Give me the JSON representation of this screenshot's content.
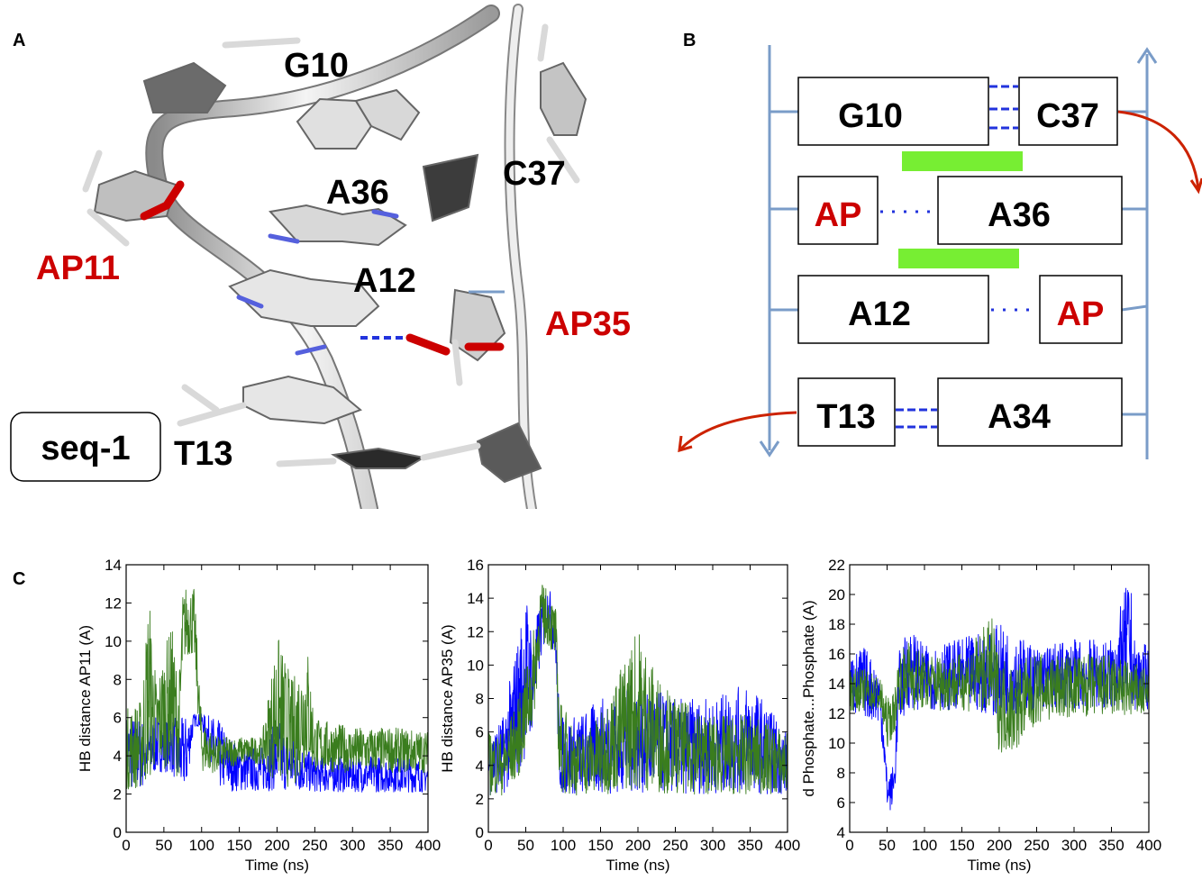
{
  "panel_labels": {
    "a": "A",
    "b": "B",
    "c": "C"
  },
  "panel_a": {
    "labels": {
      "g10": "G10",
      "c37": "C37",
      "a36": "A36",
      "a12": "A12",
      "ap11": "AP11",
      "ap35": "AP35",
      "t13": "T13",
      "seq": "seq-1"
    }
  },
  "panel_b": {
    "rows": [
      {
        "left": "G10",
        "right": "C37"
      },
      {
        "left": "AP",
        "right": "A36"
      },
      {
        "left": "A12",
        "right": "AP"
      },
      {
        "left": "T13",
        "right": "A34"
      }
    ]
  },
  "colors": {
    "blue": "#0000ff",
    "green": "#3a7d1e",
    "highlight_red": "#cc0000",
    "strand_blue": "#7a9cc8",
    "bar_green": "#77ee33",
    "arrow_red": "#cc2200",
    "hb_dash": "#2233dd"
  },
  "chart_data": [
    {
      "type": "line",
      "ylabel": "HB distance AP11 (A)",
      "xlabel": "Time (ns)",
      "xlim": [
        0,
        400
      ],
      "ylim": [
        0,
        14
      ],
      "xticks": [
        "0",
        "50",
        "100",
        "150",
        "200",
        "250",
        "300",
        "350",
        "400"
      ],
      "yticks": [
        "0",
        "2",
        "4",
        "6",
        "8",
        "10",
        "12",
        "14"
      ],
      "series": [
        {
          "color": "#0000ff",
          "x": [
            0,
            20,
            40,
            60,
            70,
            75,
            80,
            90,
            100,
            120,
            150,
            180,
            200,
            220,
            250,
            300,
            350,
            400
          ],
          "low": [
            2,
            2,
            3,
            3,
            2,
            2,
            2,
            5.5,
            5.5,
            2,
            2,
            2,
            2,
            2,
            2,
            2,
            2,
            2
          ],
          "high": [
            6.2,
            6,
            6,
            6,
            6,
            6,
            6.2,
            6.2,
            6.2,
            6,
            4.5,
            4.5,
            6,
            5,
            4,
            4,
            4,
            3.8
          ]
        },
        {
          "color": "#3a7d1e",
          "x": [
            0,
            20,
            30,
            40,
            60,
            70,
            75,
            80,
            90,
            100,
            120,
            150,
            180,
            200,
            220,
            240,
            250,
            300,
            350,
            400
          ],
          "low": [
            2,
            2,
            2,
            3,
            3,
            2.5,
            8.5,
            9,
            9,
            3,
            3,
            3.5,
            3.5,
            2,
            2,
            3,
            3,
            3,
            3,
            3
          ],
          "high": [
            6.5,
            7,
            12.8,
            8,
            11,
            8,
            12.5,
            13,
            12.8,
            6,
            5,
            5,
            5,
            10.5,
            8,
            10,
            6,
            5.5,
            5.5,
            5.3
          ]
        }
      ]
    },
    {
      "type": "line",
      "ylabel": "HB distance AP35 (A)",
      "xlabel": "Time (ns)",
      "xlim": [
        0,
        400
      ],
      "ylim": [
        0,
        16
      ],
      "xticks": [
        "0",
        "50",
        "100",
        "150",
        "200",
        "250",
        "300",
        "350",
        "400"
      ],
      "yticks": [
        "0",
        "2",
        "4",
        "6",
        "8",
        "10",
        "12",
        "14",
        "16"
      ],
      "series": [
        {
          "color": "#0000ff",
          "x": [
            0,
            20,
            40,
            50,
            60,
            70,
            80,
            90,
            95,
            120,
            150,
            200,
            250,
            300,
            350,
            400
          ],
          "low": [
            2,
            2,
            3,
            4,
            6,
            10,
            12,
            10,
            2,
            2,
            2,
            2,
            2,
            2,
            2,
            2
          ],
          "high": [
            6,
            7,
            12,
            14.5,
            12,
            14,
            15,
            13,
            7,
            7,
            8,
            9,
            8,
            8,
            9,
            6
          ]
        },
        {
          "color": "#3a7d1e",
          "x": [
            0,
            20,
            40,
            60,
            70,
            80,
            90,
            95,
            120,
            150,
            200,
            220,
            250,
            300,
            350,
            400
          ],
          "low": [
            2,
            2,
            3,
            6,
            11,
            11,
            10,
            2,
            2,
            2,
            2,
            2,
            2,
            2,
            2,
            2
          ],
          "high": [
            6,
            6,
            8,
            12,
            15,
            14.5,
            13.5,
            8,
            6,
            7,
            12.5,
            10,
            8,
            7,
            7,
            6
          ]
        }
      ]
    },
    {
      "type": "line",
      "ylabel": "d Phosphate...Phosphate (A)",
      "xlabel": "Time (ns)",
      "xlim": [
        0,
        400
      ],
      "ylim": [
        4,
        22
      ],
      "xticks": [
        "0",
        "50",
        "100",
        "150",
        "200",
        "250",
        "300",
        "350",
        "400"
      ],
      "yticks": [
        "4",
        "6",
        "8",
        "10",
        "12",
        "14",
        "16",
        "18",
        "20",
        "22"
      ],
      "series": [
        {
          "color": "#0000ff",
          "x": [
            0,
            20,
            40,
            45,
            50,
            55,
            60,
            65,
            80,
            100,
            150,
            200,
            250,
            300,
            350,
            375,
            380,
            400
          ],
          "low": [
            11.5,
            11.5,
            11,
            9,
            5.5,
            5.3,
            6,
            11,
            12,
            12,
            12,
            11.5,
            12,
            12,
            12,
            12,
            12,
            12
          ],
          "high": [
            16,
            16.5,
            15,
            12,
            8,
            8,
            9,
            16,
            18,
            16.5,
            17,
            18,
            16.5,
            17,
            17,
            21.5,
            17,
            16.5
          ]
        },
        {
          "color": "#3a7d1e",
          "x": [
            0,
            20,
            40,
            50,
            60,
            65,
            80,
            100,
            150,
            190,
            200,
            220,
            250,
            300,
            350,
            400
          ],
          "low": [
            12,
            12,
            12,
            9.5,
            10.5,
            12,
            12,
            12,
            12,
            11.5,
            9,
            9,
            11,
            11.5,
            11.5,
            11.5
          ],
          "high": [
            15,
            15,
            14.5,
            13,
            13.5,
            16,
            17,
            16,
            16,
            18.5,
            16,
            15.5,
            16,
            16,
            16,
            15
          ]
        }
      ]
    }
  ]
}
